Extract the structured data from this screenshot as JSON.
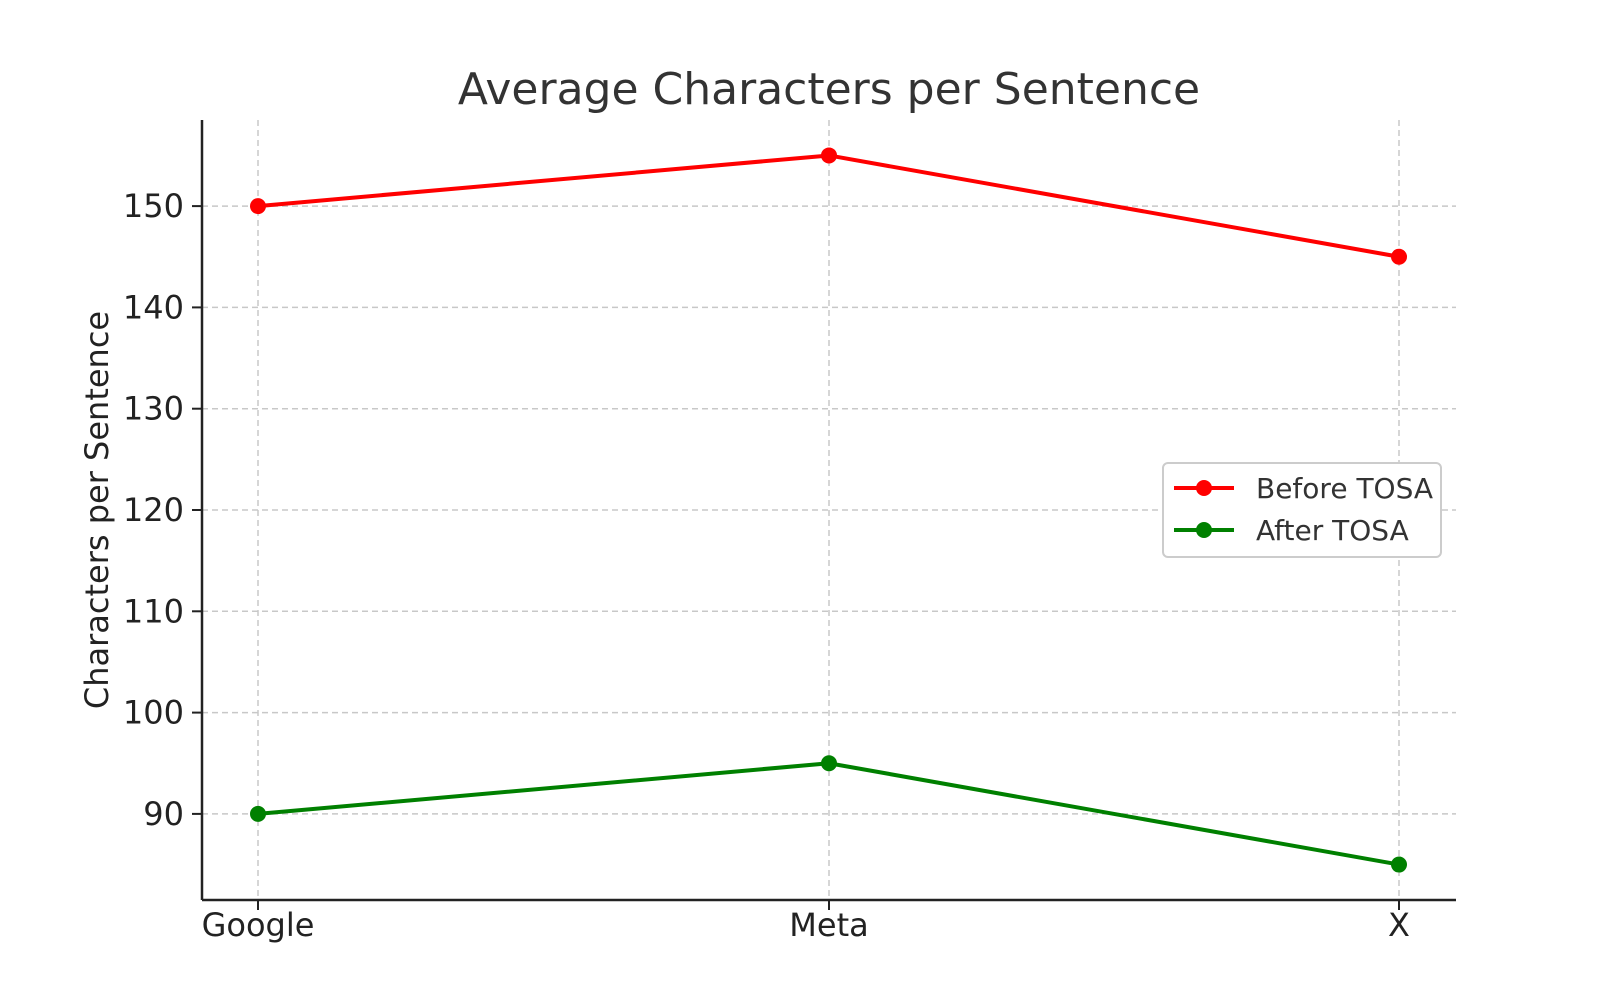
{
  "chart_data": {
    "type": "line",
    "title": "Average Characters per Sentence",
    "xlabel": "",
    "ylabel": "Characters per Sentence",
    "categories": [
      "Google",
      "Meta",
      "X"
    ],
    "yticks": [
      90,
      100,
      110,
      120,
      130,
      140,
      150
    ],
    "ylim": [
      81.5,
      158.5
    ],
    "grid": true,
    "legend_position": "center-right",
    "series": [
      {
        "name": "Before TOSA",
        "color": "#ff0000",
        "values": [
          150,
          155,
          145
        ]
      },
      {
        "name": "After TOSA",
        "color": "#008000",
        "values": [
          90,
          95,
          85
        ]
      }
    ]
  }
}
